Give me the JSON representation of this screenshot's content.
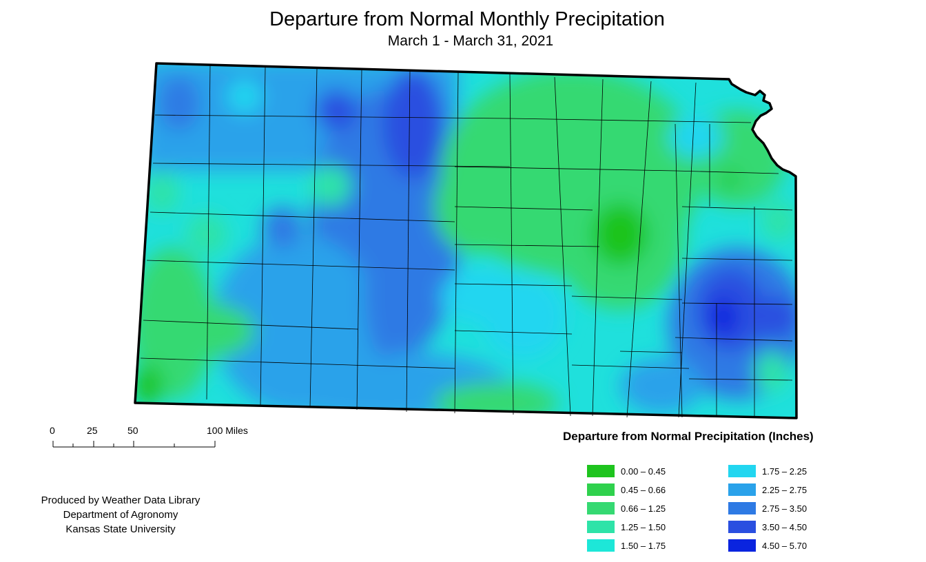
{
  "title": "Departure from Normal Monthly Precipitation",
  "subtitle": "March 1 - March 31, 2021",
  "scale_bar": {
    "ticks": [
      {
        "label": "0",
        "miles": 0
      },
      {
        "label": "25",
        "miles": 25
      },
      {
        "label": "50",
        "miles": 50
      },
      {
        "label": "100 Miles",
        "miles": 100
      }
    ]
  },
  "legend": {
    "title": "Departure from Normal Precipitation (Inches)",
    "items": [
      {
        "label": "0.00 – 0.45",
        "color": "#1ec41e"
      },
      {
        "label": "0.45 – 0.66",
        "color": "#2fd14d"
      },
      {
        "label": "0.66 – 1.25",
        "color": "#35d972"
      },
      {
        "label": "1.25 – 1.50",
        "color": "#2ee3a8"
      },
      {
        "label": "1.50 – 1.75",
        "color": "#1de7d8"
      },
      {
        "label": "1.75 – 2.25",
        "color": "#22d6f0"
      },
      {
        "label": "2.25 – 2.75",
        "color": "#2aa2ea"
      },
      {
        "label": "2.75 – 3.50",
        "color": "#2e7ae4"
      },
      {
        "label": "3.50 – 4.50",
        "color": "#2a4fe0"
      },
      {
        "label": "4.50 – 5.70",
        "color": "#0a24df"
      }
    ]
  },
  "credits": [
    "Produced by Weather Data Library",
    "Department of Agronomy",
    "Kansas State University"
  ]
}
